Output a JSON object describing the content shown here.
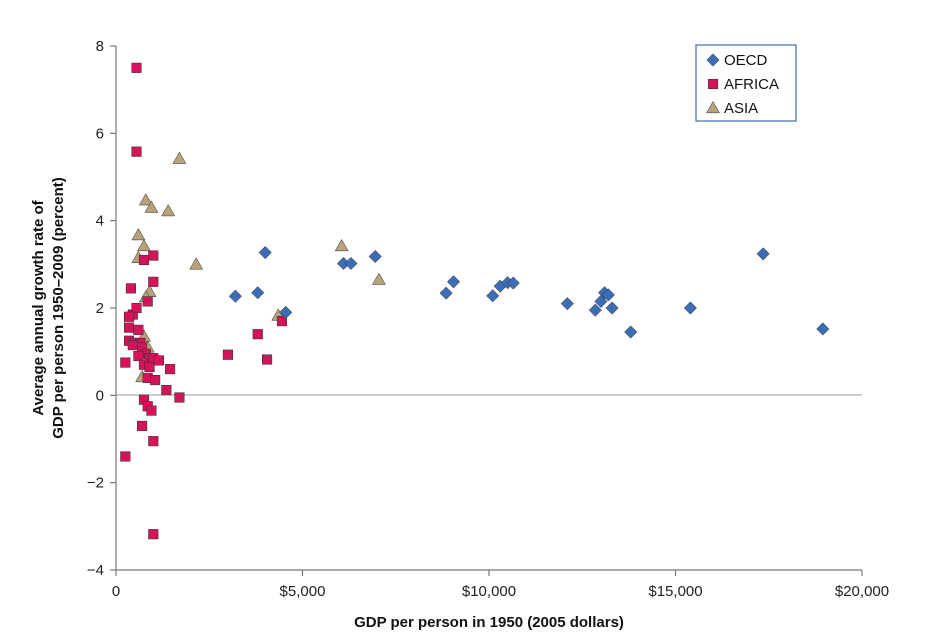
{
  "chart_data": {
    "type": "scatter",
    "xlabel": "GDP per person in 1950 (2005 dollars)",
    "ylabel_lines": [
      "Average annual growth rate of",
      "GDP per person 1950–2009 (percent)"
    ],
    "xlim": [
      0,
      20000
    ],
    "ylim": [
      -4,
      8
    ],
    "x_ticks": [
      0,
      5000,
      10000,
      15000,
      20000
    ],
    "x_tick_labels": [
      "0",
      "$5,000",
      "$10,000",
      "$15,000",
      "$20,000"
    ],
    "y_ticks": [
      -4,
      -2,
      0,
      2,
      4,
      6,
      8
    ],
    "y_tick_labels": [
      "−4",
      "−2",
      "0",
      "2",
      "4",
      "6",
      "8"
    ],
    "grid": false,
    "zero_line": true,
    "legend_position": "top-right",
    "series": [
      {
        "name": "OECD",
        "marker": "diamond",
        "color": "#3d6db5",
        "points": [
          [
            3200,
            2.27
          ],
          [
            3800,
            2.35
          ],
          [
            4000,
            3.27
          ],
          [
            4550,
            1.9
          ],
          [
            6100,
            3.02
          ],
          [
            6300,
            3.02
          ],
          [
            6950,
            3.18
          ],
          [
            8850,
            2.34
          ],
          [
            9050,
            2.6
          ],
          [
            10100,
            2.28
          ],
          [
            10300,
            2.5
          ],
          [
            10500,
            2.58
          ],
          [
            10650,
            2.57
          ],
          [
            12100,
            2.1
          ],
          [
            12850,
            1.95
          ],
          [
            13000,
            2.15
          ],
          [
            13100,
            2.35
          ],
          [
            13200,
            2.3
          ],
          [
            13300,
            2.0
          ],
          [
            13800,
            1.45
          ],
          [
            15400,
            2.0
          ],
          [
            17350,
            3.24
          ],
          [
            18950,
            1.52
          ]
        ]
      },
      {
        "name": "AFRICA",
        "marker": "square",
        "color": "#d4145a",
        "points": [
          [
            550,
            7.5
          ],
          [
            550,
            5.58
          ],
          [
            400,
            2.45
          ],
          [
            850,
            2.15
          ],
          [
            1000,
            3.2
          ],
          [
            750,
            3.1
          ],
          [
            1000,
            2.6
          ],
          [
            450,
            1.85
          ],
          [
            550,
            2.0
          ],
          [
            350,
            1.8
          ],
          [
            350,
            1.55
          ],
          [
            600,
            1.5
          ],
          [
            350,
            1.25
          ],
          [
            500,
            1.2
          ],
          [
            650,
            1.2
          ],
          [
            450,
            1.15
          ],
          [
            700,
            1.1
          ],
          [
            800,
            0.95
          ],
          [
            600,
            0.9
          ],
          [
            900,
            0.85
          ],
          [
            1000,
            0.85
          ],
          [
            250,
            0.75
          ],
          [
            750,
            0.7
          ],
          [
            900,
            0.65
          ],
          [
            1150,
            0.8
          ],
          [
            1450,
            0.6
          ],
          [
            850,
            0.4
          ],
          [
            1050,
            0.35
          ],
          [
            1350,
            0.12
          ],
          [
            1700,
            -0.05
          ],
          [
            750,
            -0.1
          ],
          [
            850,
            -0.25
          ],
          [
            950,
            -0.35
          ],
          [
            700,
            -0.7
          ],
          [
            1000,
            -1.05
          ],
          [
            250,
            -1.4
          ],
          [
            1000,
            -3.18
          ],
          [
            3000,
            0.93
          ],
          [
            3800,
            1.4
          ],
          [
            4050,
            0.82
          ],
          [
            4450,
            1.7
          ]
        ]
      },
      {
        "name": "ASIA",
        "marker": "triangle",
        "color": "#b8a27a",
        "points": [
          [
            1700,
            5.42
          ],
          [
            800,
            4.47
          ],
          [
            950,
            4.3
          ],
          [
            1400,
            4.22
          ],
          [
            600,
            3.67
          ],
          [
            750,
            3.42
          ],
          [
            600,
            3.15
          ],
          [
            2150,
            3.0
          ],
          [
            900,
            2.37
          ],
          [
            800,
            2.25
          ],
          [
            750,
            1.35
          ],
          [
            850,
            1.1
          ],
          [
            700,
            0.42
          ],
          [
            4350,
            1.83
          ],
          [
            6050,
            3.42
          ],
          [
            7050,
            2.65
          ]
        ]
      }
    ]
  }
}
